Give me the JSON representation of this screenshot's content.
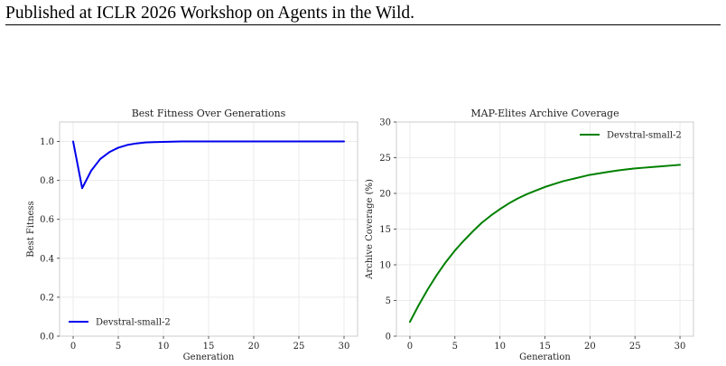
{
  "header": {
    "text": "Published at ICLR 2026 Workshop on Agents in the Wild."
  },
  "chart_data": [
    {
      "type": "line",
      "title": "Best Fitness Over Generations",
      "xlabel": "Generation",
      "ylabel": "Best Fitness",
      "xlim": [
        -1.5,
        31.5
      ],
      "ylim": [
        0.0,
        1.1
      ],
      "xticks": [
        0,
        5,
        10,
        15,
        20,
        25,
        30
      ],
      "yticks": [
        0.0,
        0.2,
        0.4,
        0.6,
        0.8,
        1.0
      ],
      "ytick_labels": [
        "0.0",
        "0.2",
        "0.4",
        "0.6",
        "0.8",
        "1.0"
      ],
      "grid": true,
      "legend_position": "lower-left",
      "series": [
        {
          "name": "Devstral-small-2",
          "color": "#0000ee",
          "x": [
            0,
            1,
            2,
            3,
            4,
            5,
            6,
            7,
            8,
            9,
            10,
            11,
            12,
            13,
            14,
            15,
            16,
            17,
            18,
            19,
            20,
            21,
            22,
            23,
            24,
            25,
            26,
            27,
            28,
            29,
            30
          ],
          "y": [
            1.0,
            0.76,
            0.85,
            0.91,
            0.945,
            0.968,
            0.982,
            0.99,
            0.995,
            0.997,
            0.998,
            0.999,
            1.0,
            1.0,
            1.0,
            1.0,
            1.0,
            1.0,
            1.0,
            1.0,
            1.0,
            1.0,
            1.0,
            1.0,
            1.0,
            1.0,
            1.0,
            1.0,
            1.0,
            1.0,
            1.0
          ]
        }
      ]
    },
    {
      "type": "line",
      "title": "MAP-Elites Archive Coverage",
      "xlabel": "Generation",
      "ylabel": "Archive Coverage (%)",
      "xlim": [
        -1.5,
        31.5
      ],
      "ylim": [
        0,
        30
      ],
      "xticks": [
        0,
        5,
        10,
        15,
        20,
        25,
        30
      ],
      "yticks": [
        0,
        5,
        10,
        15,
        20,
        25,
        30
      ],
      "ytick_labels": [
        "0",
        "5",
        "10",
        "15",
        "20",
        "25",
        "30"
      ],
      "grid": true,
      "legend_position": "upper-right",
      "series": [
        {
          "name": "Devstral-small-2",
          "color": "#008000",
          "x": [
            0,
            1,
            2,
            3,
            4,
            5,
            6,
            7,
            8,
            9,
            10,
            11,
            12,
            13,
            14,
            15,
            16,
            17,
            18,
            19,
            20,
            21,
            22,
            23,
            24,
            25,
            26,
            27,
            28,
            29,
            30
          ],
          "y": [
            2.0,
            4.4,
            6.6,
            8.6,
            10.4,
            12.0,
            13.4,
            14.7,
            15.9,
            16.9,
            17.8,
            18.6,
            19.3,
            19.9,
            20.4,
            20.9,
            21.3,
            21.7,
            22.0,
            22.3,
            22.6,
            22.8,
            23.0,
            23.2,
            23.35,
            23.5,
            23.6,
            23.7,
            23.8,
            23.9,
            24.0
          ]
        }
      ]
    }
  ]
}
